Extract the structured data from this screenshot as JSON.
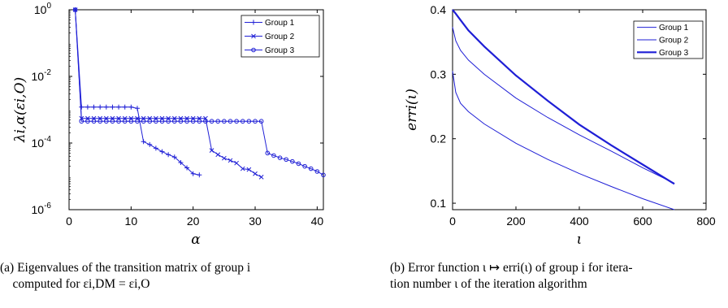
{
  "chart_data": [
    {
      "type": "line",
      "xlabel": "α",
      "ylabel": "λi,α(εi,O)",
      "y_scale": "log",
      "xlim": [
        0,
        41
      ],
      "ylim": [
        1e-06,
        1
      ],
      "xticks": [
        0,
        10,
        20,
        30,
        40
      ],
      "xtick_labels": [
        "0",
        "10",
        "20",
        "30",
        "40"
      ],
      "yticks": [
        1e-06,
        0.0001,
        0.01,
        1
      ],
      "ytick_labels": [
        [
          "10",
          "-6"
        ],
        [
          "10",
          "-4"
        ],
        [
          "10",
          "-2"
        ],
        [
          "10",
          "0"
        ]
      ],
      "grid": false,
      "legend": "top-right",
      "color": "#1f1fd6",
      "series": [
        {
          "name": "Group 1",
          "marker": "plus",
          "x": [
            1,
            2,
            3,
            4,
            5,
            6,
            7,
            8,
            9,
            10,
            11,
            12,
            13,
            14,
            15,
            16,
            17,
            18,
            19,
            20,
            21
          ],
          "y": [
            1,
            0.0012,
            0.0012,
            0.0012,
            0.0012,
            0.0012,
            0.0012,
            0.0012,
            0.0012,
            0.0012,
            0.0011,
            0.00011,
            9e-05,
            7e-05,
            5.5e-05,
            4.5e-05,
            3.8e-05,
            2.6e-05,
            1.8e-05,
            1.2e-05,
            1.1e-05
          ]
        },
        {
          "name": "Group 2",
          "marker": "x",
          "x": [
            1,
            2,
            3,
            4,
            5,
            6,
            7,
            8,
            9,
            10,
            11,
            12,
            13,
            14,
            15,
            16,
            17,
            18,
            19,
            20,
            21,
            22,
            23,
            24,
            25,
            26,
            27,
            28,
            29,
            30,
            31
          ],
          "y": [
            1,
            0.00055,
            0.00055,
            0.00055,
            0.00055,
            0.00055,
            0.00055,
            0.00055,
            0.00055,
            0.00055,
            0.00055,
            0.00055,
            0.00055,
            0.00055,
            0.00055,
            0.00055,
            0.00055,
            0.00055,
            0.00055,
            0.00055,
            0.00055,
            0.00055,
            6e-05,
            4.5e-05,
            3.5e-05,
            3e-05,
            2.5e-05,
            1.7e-05,
            1.6e-05,
            1.2e-05,
            9.5e-06
          ]
        },
        {
          "name": "Group 3",
          "marker": "circle",
          "x": [
            1,
            2,
            3,
            4,
            5,
            6,
            7,
            8,
            9,
            10,
            11,
            12,
            13,
            14,
            15,
            16,
            17,
            18,
            19,
            20,
            21,
            22,
            23,
            24,
            25,
            26,
            27,
            28,
            29,
            30,
            31,
            32,
            33,
            34,
            35,
            36,
            37,
            38,
            39,
            40,
            41
          ],
          "y": [
            1,
            0.00045,
            0.00045,
            0.00045,
            0.00045,
            0.00045,
            0.00045,
            0.00045,
            0.00045,
            0.00045,
            0.00045,
            0.00045,
            0.00045,
            0.00045,
            0.00045,
            0.00045,
            0.00045,
            0.00045,
            0.00045,
            0.00045,
            0.00045,
            0.00045,
            0.00045,
            0.00045,
            0.00045,
            0.00045,
            0.00045,
            0.00045,
            0.00045,
            0.00045,
            0.00045,
            5e-05,
            4.2e-05,
            3.6e-05,
            3.2e-05,
            2.8e-05,
            2.4e-05,
            2e-05,
            1.7e-05,
            1.4e-05,
            1.1e-05
          ]
        }
      ]
    },
    {
      "type": "line",
      "xlabel": "ι",
      "ylabel": "erri(ι)",
      "xlim": [
        0,
        800
      ],
      "ylim": [
        0.09,
        0.4
      ],
      "xticks": [
        0,
        200,
        400,
        600,
        800
      ],
      "xtick_labels": [
        "0",
        "200",
        "400",
        "600",
        "800"
      ],
      "yticks": [
        0.1,
        0.2,
        0.3,
        0.4
      ],
      "ytick_labels": [
        "0.1",
        "0.2",
        "0.3",
        "0.4"
      ],
      "grid": false,
      "legend": "top-right",
      "color": "#1f1fd6",
      "series": [
        {
          "name": "Group 1",
          "x": [
            0,
            10,
            25,
            50,
            100,
            200,
            300,
            400,
            500,
            600,
            700
          ],
          "y": [
            0.305,
            0.272,
            0.255,
            0.242,
            0.223,
            0.193,
            0.168,
            0.146,
            0.126,
            0.107,
            0.09
          ]
        },
        {
          "name": "Group 2",
          "x": [
            0,
            10,
            25,
            50,
            100,
            200,
            300,
            400,
            500,
            600,
            700
          ],
          "y": [
            0.373,
            0.352,
            0.337,
            0.322,
            0.3,
            0.263,
            0.233,
            0.206,
            0.181,
            0.155,
            0.131
          ]
        },
        {
          "name": "Group 3",
          "x": [
            0,
            10,
            25,
            50,
            100,
            200,
            300,
            400,
            500,
            600,
            700
          ],
          "y": [
            0.4,
            0.394,
            0.384,
            0.368,
            0.343,
            0.298,
            0.259,
            0.222,
            0.19,
            0.16,
            0.13
          ]
        }
      ]
    }
  ],
  "captions": {
    "a": "(a) Eigenvalues of the transition matrix of group i\n    computed for εi,DM = εi,O",
    "b": "(b) Error function ι ↦ erri(ι) of group i for itera-\ntion number ι of the iteration algorithm"
  }
}
